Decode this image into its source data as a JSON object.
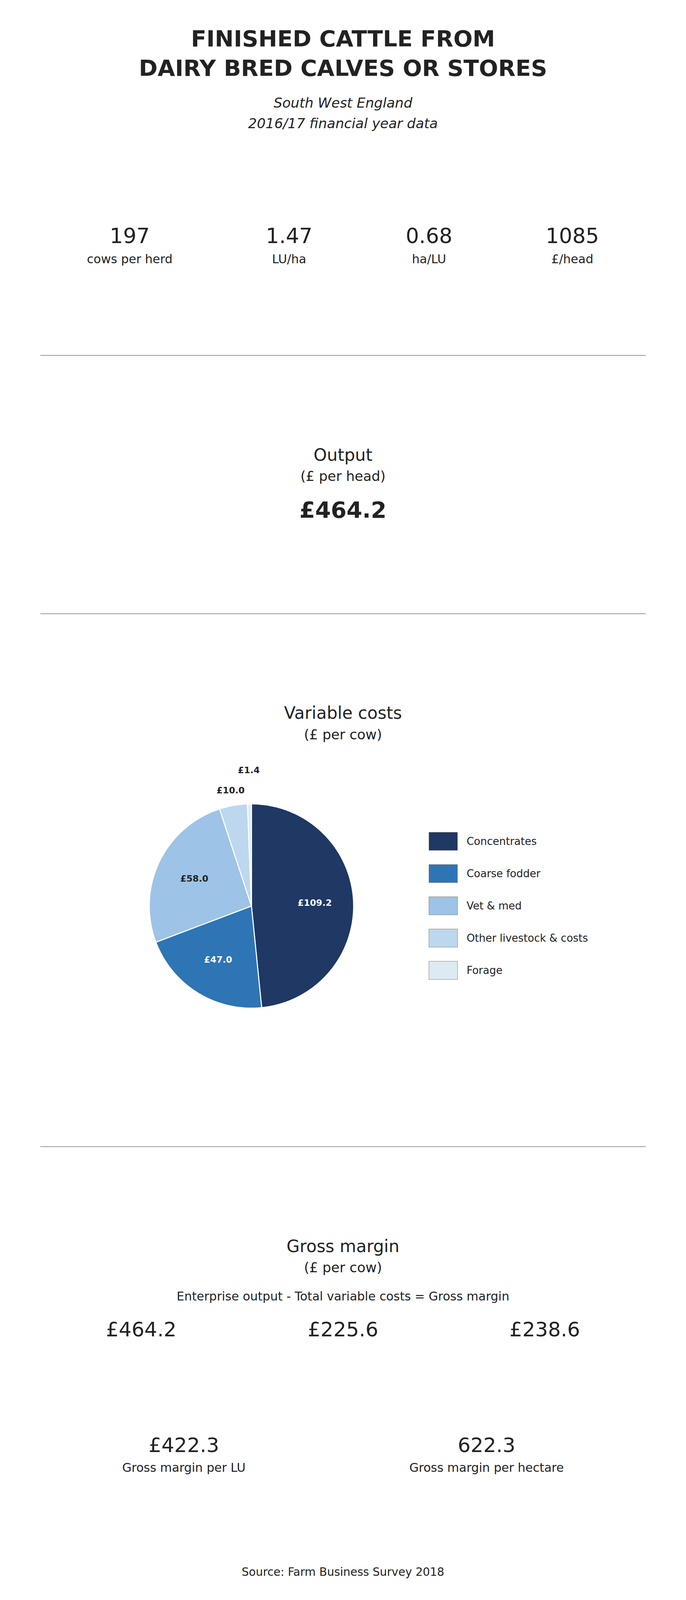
{
  "chart_data": {
    "type": "pie",
    "title": "Variable costs",
    "subtitle": "(£ per cow)",
    "categories": [
      "Concentrates",
      "Coarse fodder",
      "Vet & med",
      "Other livestock & costs",
      "Forage"
    ],
    "values": [
      109.2,
      47.0,
      58.0,
      10.0,
      1.4
    ],
    "value_labels": [
      "£109.2",
      "£47.0",
      "£58.0",
      "£10.0",
      "£1.4"
    ],
    "colors": [
      "#1F3864",
      "#2E75B6",
      "#9DC3E6",
      "#BDD7EE",
      "#DEEAF1"
    ],
    "legend": "right",
    "data_labels": true,
    "annotations": [
      "FINISHED CATTLE FROM",
      "DAIRY BRED CALVES OR STORES",
      "South West England",
      "2016/17 financial year data",
      "197",
      "cows per herd",
      "1.47",
      "LU/ha",
      "0.68",
      "ha/LU",
      "1085",
      "£/head",
      "Output",
      "(£ per head)",
      "£464.2",
      "Gross margin",
      "(£ per cow)",
      "Enterprise output - Total variable costs = Gross margin",
      "£464.2",
      "£225.6",
      "£238.6",
      "£422.3",
      "Gross margin per LU",
      "622.3",
      "Gross margin per hectare",
      "Source: Farm Business Survey 2018"
    ]
  }
}
